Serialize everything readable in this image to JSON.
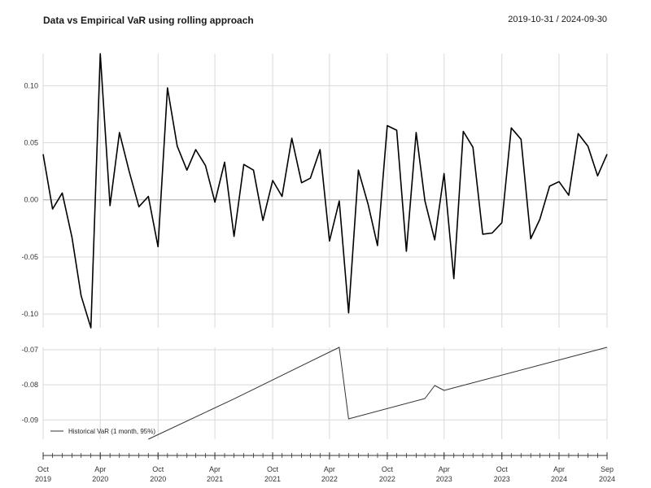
{
  "header": {
    "title": "Data vs Empirical VaR using rolling approach",
    "date_range": "2019-10-31 / 2024-09-30"
  },
  "chart_data": [
    {
      "type": "line",
      "panel": "returns",
      "x": [
        "2019-10-31",
        "2019-11-30",
        "2019-12-31",
        "2020-01-31",
        "2020-02-29",
        "2020-03-31",
        "2020-04-30",
        "2020-05-31",
        "2020-06-30",
        "2020-07-31",
        "2020-08-31",
        "2020-09-30",
        "2020-10-31",
        "2020-11-30",
        "2020-12-31",
        "2021-01-31",
        "2021-02-28",
        "2021-03-31",
        "2021-04-30",
        "2021-05-31",
        "2021-06-30",
        "2021-07-31",
        "2021-08-31",
        "2021-09-30",
        "2021-10-31",
        "2021-11-30",
        "2021-12-31",
        "2022-01-31",
        "2022-02-28",
        "2022-03-31",
        "2022-04-30",
        "2022-05-31",
        "2022-06-30",
        "2022-07-31",
        "2022-08-31",
        "2022-09-30",
        "2022-10-31",
        "2022-11-30",
        "2022-12-31",
        "2023-01-31",
        "2023-02-28",
        "2023-03-31",
        "2023-04-30",
        "2023-05-31",
        "2023-06-30",
        "2023-07-31",
        "2023-08-31",
        "2023-09-30",
        "2023-10-31",
        "2023-11-30",
        "2023-12-31",
        "2024-01-31",
        "2024-02-29",
        "2024-03-31",
        "2024-04-30",
        "2024-05-31",
        "2024-06-30",
        "2024-07-31",
        "2024-08-31",
        "2024-09-30"
      ],
      "values": [
        0.04,
        -0.008,
        0.006,
        -0.033,
        -0.084,
        -0.112,
        0.128,
        -0.005,
        0.059,
        0.025,
        -0.006,
        0.003,
        -0.041,
        0.098,
        0.047,
        0.026,
        0.044,
        0.03,
        -0.002,
        0.033,
        -0.032,
        0.031,
        0.026,
        -0.018,
        0.017,
        0.003,
        0.054,
        0.015,
        0.019,
        0.044,
        -0.036,
        -0.001,
        -0.099,
        0.026,
        -0.004,
        -0.04,
        0.065,
        0.061,
        -0.045,
        0.059,
        -0.001,
        -0.035,
        0.023,
        -0.069,
        0.06,
        0.046,
        -0.03,
        -0.029,
        -0.02,
        0.063,
        0.053,
        -0.034,
        -0.017,
        0.012,
        0.016,
        0.004,
        0.058,
        0.047,
        0.021,
        0.04
      ],
      "ylim": [
        -0.112,
        0.128
      ],
      "yticks": [
        "0.10",
        "0.05",
        "0.00",
        "-0.05",
        "-0.10"
      ],
      "ytick_values": [
        0.1,
        0.05,
        0.0,
        -0.05,
        -0.1
      ]
    },
    {
      "type": "line",
      "panel": "var",
      "series": [
        {
          "name": "Historical VaR (1 month, 95%)",
          "x": [
            "2020-09-30",
            "2021-06-30",
            "2022-05-31",
            "2022-06-30",
            "2023-02-28",
            "2023-03-31",
            "2023-04-30",
            "2024-09-30"
          ],
          "values": [
            -0.0955,
            -0.084,
            -0.0693,
            -0.0897,
            -0.0839,
            -0.0802,
            -0.0816,
            -0.0693
          ]
        }
      ],
      "ylim": [
        -0.0955,
        -0.0693
      ],
      "yticks": [
        "-0.07",
        "-0.08",
        "-0.09"
      ],
      "ytick_values": [
        -0.07,
        -0.08,
        -0.09
      ],
      "legend_placement": "bottom-left"
    }
  ],
  "xaxis": {
    "labels": [
      {
        "month": "Oct",
        "year": "2019",
        "date": "2019-10-31"
      },
      {
        "month": "Apr",
        "year": "2020",
        "date": "2020-04-30"
      },
      {
        "month": "Oct",
        "year": "2020",
        "date": "2020-10-31"
      },
      {
        "month": "Apr",
        "year": "2021",
        "date": "2021-04-30"
      },
      {
        "month": "Oct",
        "year": "2021",
        "date": "2021-10-31"
      },
      {
        "month": "Apr",
        "year": "2022",
        "date": "2022-04-30"
      },
      {
        "month": "Oct",
        "year": "2022",
        "date": "2022-10-31"
      },
      {
        "month": "Apr",
        "year": "2023",
        "date": "2023-04-30"
      },
      {
        "month": "Oct",
        "year": "2023",
        "date": "2023-10-31"
      },
      {
        "month": "Apr",
        "year": "2024",
        "date": "2024-04-30"
      },
      {
        "month": "Sep",
        "year": "2024",
        "date": "2024-09-30"
      }
    ]
  },
  "colors": {
    "line": "#000000",
    "var_line": "#333333",
    "grid": "#d9d9d9",
    "zero": "#a6a6a6",
    "axis": "#333333"
  }
}
